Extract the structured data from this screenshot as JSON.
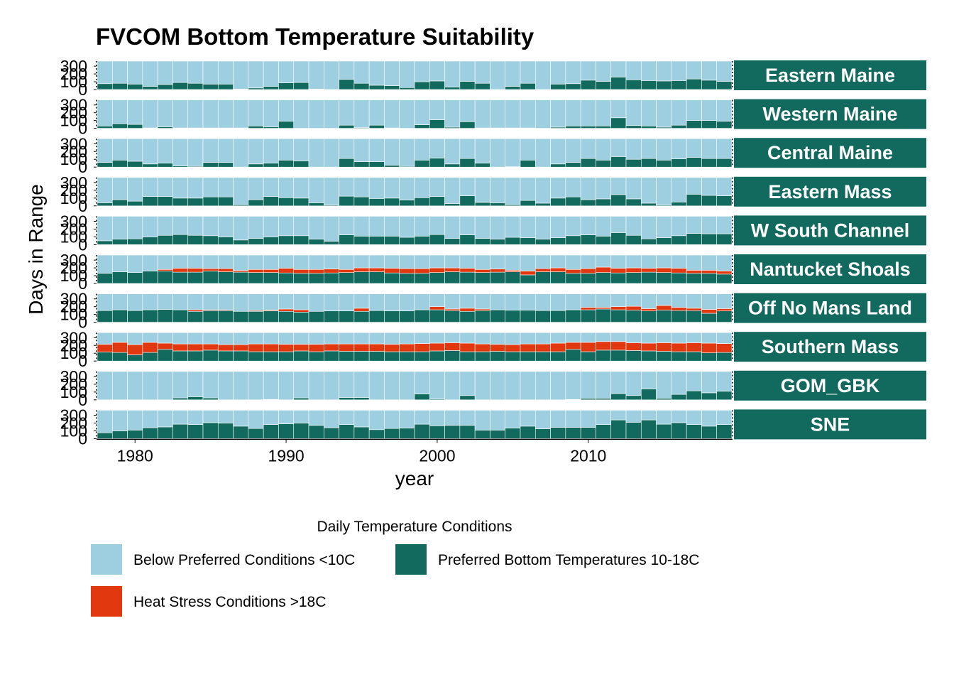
{
  "colors": {
    "below": "#9ecfe0",
    "preferred": "#12695d",
    "heat": "#e1380f",
    "strip": "#12695d"
  },
  "chart_data": {
    "type": "bar",
    "stacked": true,
    "faceted": true,
    "title": "FVCOM Bottom Temperature Suitability",
    "xlabel": "year",
    "ylabel": "Days in Range",
    "x": [
      1978,
      1979,
      1980,
      1981,
      1982,
      1983,
      1984,
      1985,
      1986,
      1987,
      1988,
      1989,
      1990,
      1991,
      1992,
      1993,
      1994,
      1995,
      1996,
      1997,
      1998,
      1999,
      2000,
      2001,
      2002,
      2003,
      2004,
      2005,
      2006,
      2007,
      2008,
      2009,
      2010,
      2011,
      2012,
      2013,
      2014,
      2015,
      2016,
      2017,
      2018,
      2019
    ],
    "xlim": [
      1977.5,
      2019.5
    ],
    "x_ticks": [
      "1980",
      "1990",
      "2000",
      "2010"
    ],
    "x_tick_values": [
      1980,
      1990,
      2000,
      2010
    ],
    "ylim": [
      0,
      365
    ],
    "y_ticks": [
      "0",
      "100",
      "200",
      "300"
    ],
    "y_tick_values": [
      0,
      100,
      200,
      300
    ],
    "legend": {
      "title": "Daily Temperature Conditions",
      "position": "bottom",
      "entries": [
        {
          "key": "below",
          "label": "Below Preferred Conditions <10C"
        },
        {
          "key": "preferred",
          "label": "Preferred Bottom Temperatures 10-18C"
        },
        {
          "key": "heat",
          "label": "Heat Stress Conditions >18C"
        }
      ]
    },
    "panels": [
      {
        "name": "Eastern Maine",
        "preferred": [
          75,
          80,
          70,
          40,
          65,
          90,
          80,
          70,
          70,
          5,
          20,
          40,
          85,
          90,
          5,
          0,
          130,
          80,
          55,
          50,
          25,
          100,
          110,
          30,
          105,
          80,
          0,
          40,
          80,
          0,
          70,
          75,
          120,
          105,
          160,
          125,
          115,
          110,
          115,
          135,
          120,
          105
        ],
        "heat": [
          0,
          0,
          0,
          0,
          0,
          0,
          0,
          0,
          0,
          0,
          0,
          0,
          0,
          0,
          0,
          0,
          0,
          0,
          0,
          0,
          0,
          0,
          0,
          0,
          0,
          0,
          0,
          0,
          0,
          0,
          0,
          0,
          0,
          0,
          0,
          0,
          0,
          0,
          0,
          0,
          0,
          0
        ]
      },
      {
        "name": "Western Maine",
        "preferred": [
          30,
          60,
          50,
          5,
          20,
          5,
          5,
          5,
          5,
          5,
          30,
          20,
          90,
          0,
          0,
          0,
          40,
          10,
          40,
          5,
          0,
          45,
          110,
          15,
          85,
          5,
          5,
          5,
          5,
          0,
          15,
          30,
          30,
          30,
          135,
          35,
          30,
          15,
          40,
          100,
          100,
          90
        ],
        "heat": [
          0,
          0,
          0,
          0,
          0,
          0,
          0,
          0,
          0,
          0,
          0,
          0,
          0,
          0,
          0,
          0,
          0,
          0,
          0,
          0,
          0,
          0,
          0,
          0,
          0,
          0,
          0,
          0,
          0,
          0,
          0,
          0,
          0,
          0,
          0,
          0,
          0,
          0,
          0,
          0,
          0,
          0
        ]
      },
      {
        "name": "Central Maine",
        "preferred": [
          60,
          90,
          75,
          40,
          50,
          15,
          10,
          60,
          60,
          0,
          40,
          50,
          90,
          80,
          0,
          0,
          110,
          70,
          70,
          25,
          10,
          90,
          115,
          40,
          110,
          50,
          0,
          5,
          90,
          0,
          40,
          60,
          110,
          90,
          135,
          100,
          110,
          90,
          105,
          125,
          110,
          110
        ],
        "heat": [
          0,
          0,
          0,
          0,
          0,
          0,
          0,
          0,
          0,
          0,
          0,
          0,
          0,
          0,
          0,
          0,
          0,
          0,
          0,
          0,
          0,
          0,
          0,
          0,
          0,
          0,
          0,
          0,
          0,
          0,
          0,
          0,
          0,
          0,
          0,
          0,
          0,
          0,
          0,
          0,
          0,
          0
        ]
      },
      {
        "name": "Eastern Mass",
        "preferred": [
          40,
          80,
          60,
          120,
          120,
          100,
          100,
          115,
          115,
          15,
          80,
          120,
          105,
          100,
          40,
          10,
          125,
          115,
          95,
          100,
          75,
          105,
          120,
          30,
          130,
          45,
          40,
          15,
          70,
          35,
          100,
          115,
          80,
          90,
          145,
          90,
          35,
          10,
          50,
          150,
          135,
          130
        ],
        "heat": [
          0,
          0,
          0,
          0,
          0,
          0,
          0,
          0,
          0,
          0,
          0,
          0,
          0,
          0,
          0,
          0,
          0,
          0,
          0,
          0,
          0,
          0,
          0,
          0,
          0,
          0,
          0,
          0,
          0,
          0,
          0,
          0,
          0,
          0,
          0,
          0,
          0,
          0,
          0,
          0,
          0,
          0
        ]
      },
      {
        "name": "W South Channel",
        "preferred": [
          50,
          70,
          75,
          100,
          120,
          130,
          120,
          115,
          100,
          60,
          80,
          100,
          115,
          115,
          70,
          45,
          125,
          110,
          110,
          110,
          95,
          110,
          130,
          80,
          125,
          80,
          70,
          95,
          90,
          70,
          90,
          115,
          125,
          110,
          155,
          120,
          75,
          90,
          115,
          145,
          140,
          140
        ],
        "heat": [
          0,
          0,
          0,
          0,
          0,
          0,
          0,
          0,
          0,
          0,
          0,
          0,
          0,
          0,
          0,
          0,
          0,
          0,
          0,
          0,
          0,
          0,
          0,
          0,
          0,
          0,
          0,
          0,
          0,
          0,
          0,
          0,
          0,
          0,
          0,
          0,
          0,
          0,
          0,
          0,
          0,
          0
        ]
      },
      {
        "name": "Nantucket Shoals",
        "preferred": [
          130,
          150,
          140,
          160,
          160,
          145,
          145,
          160,
          150,
          145,
          140,
          140,
          135,
          130,
          130,
          135,
          140,
          150,
          150,
          135,
          130,
          130,
          140,
          150,
          145,
          140,
          145,
          150,
          110,
          150,
          150,
          130,
          130,
          140,
          135,
          140,
          145,
          140,
          135,
          130,
          130,
          120
        ],
        "heat": [
          0,
          0,
          0,
          0,
          20,
          50,
          50,
          30,
          40,
          20,
          40,
          40,
          60,
          50,
          50,
          50,
          40,
          50,
          50,
          60,
          60,
          60,
          60,
          50,
          50,
          40,
          40,
          20,
          50,
          40,
          50,
          50,
          60,
          70,
          60,
          60,
          50,
          60,
          60,
          40,
          40,
          40
        ]
      },
      {
        "name": "Off No Mans Land",
        "preferred": [
          150,
          160,
          150,
          160,
          165,
          160,
          140,
          150,
          150,
          140,
          140,
          145,
          140,
          130,
          140,
          145,
          145,
          140,
          150,
          145,
          145,
          160,
          160,
          150,
          140,
          150,
          160,
          155,
          155,
          150,
          150,
          160,
          160,
          170,
          160,
          155,
          145,
          155,
          150,
          150,
          115,
          145
        ],
        "heat": [
          0,
          0,
          0,
          0,
          0,
          0,
          20,
          10,
          10,
          0,
          10,
          10,
          30,
          30,
          0,
          0,
          0,
          40,
          0,
          0,
          0,
          0,
          40,
          20,
          40,
          20,
          0,
          0,
          0,
          0,
          0,
          0,
          30,
          20,
          40,
          50,
          30,
          60,
          40,
          30,
          50,
          30
        ]
      },
      {
        "name": "Southern Mass",
        "preferred": [
          115,
          110,
          80,
          110,
          150,
          130,
          130,
          140,
          130,
          130,
          120,
          120,
          120,
          130,
          120,
          130,
          125,
          125,
          125,
          120,
          120,
          120,
          130,
          135,
          120,
          120,
          125,
          120,
          120,
          120,
          120,
          150,
          120,
          140,
          140,
          135,
          130,
          125,
          120,
          120,
          105,
          110
        ],
        "heat": [
          100,
          130,
          130,
          130,
          80,
          90,
          90,
          80,
          80,
          80,
          100,
          100,
          95,
          85,
          95,
          90,
          95,
          95,
          95,
          95,
          100,
          105,
          100,
          100,
          110,
          100,
          90,
          90,
          100,
          100,
          110,
          90,
          120,
          110,
          110,
          100,
          100,
          110,
          110,
          115,
          125,
          115
        ]
      },
      {
        "name": "GOM_GBK",
        "preferred": [
          0,
          0,
          0,
          0,
          0,
          25,
          40,
          25,
          0,
          0,
          0,
          5,
          0,
          25,
          0,
          0,
          30,
          30,
          0,
          0,
          0,
          75,
          10,
          0,
          55,
          0,
          0,
          0,
          0,
          0,
          0,
          5,
          20,
          20,
          80,
          55,
          140,
          20,
          70,
          115,
          90,
          110
        ],
        "heat": [
          0,
          0,
          0,
          0,
          0,
          0,
          0,
          0,
          0,
          0,
          0,
          0,
          0,
          0,
          0,
          0,
          0,
          0,
          0,
          0,
          0,
          0,
          0,
          0,
          0,
          0,
          0,
          0,
          0,
          0,
          0,
          0,
          0,
          0,
          0,
          0,
          0,
          0,
          0,
          0,
          0,
          0
        ]
      },
      {
        "name": "SNE",
        "preferred": [
          75,
          100,
          110,
          140,
          150,
          185,
          180,
          205,
          200,
          160,
          130,
          180,
          190,
          200,
          170,
          140,
          180,
          150,
          115,
          130,
          135,
          185,
          165,
          170,
          170,
          110,
          110,
          135,
          160,
          125,
          145,
          145,
          145,
          180,
          240,
          210,
          240,
          185,
          205,
          180,
          160,
          180
        ],
        "heat": [
          0,
          0,
          0,
          0,
          0,
          0,
          0,
          0,
          0,
          0,
          0,
          0,
          0,
          0,
          0,
          0,
          0,
          0,
          0,
          0,
          0,
          0,
          0,
          0,
          0,
          0,
          0,
          0,
          0,
          0,
          0,
          0,
          0,
          0,
          0,
          0,
          0,
          0,
          0,
          0,
          0,
          0
        ]
      }
    ]
  }
}
